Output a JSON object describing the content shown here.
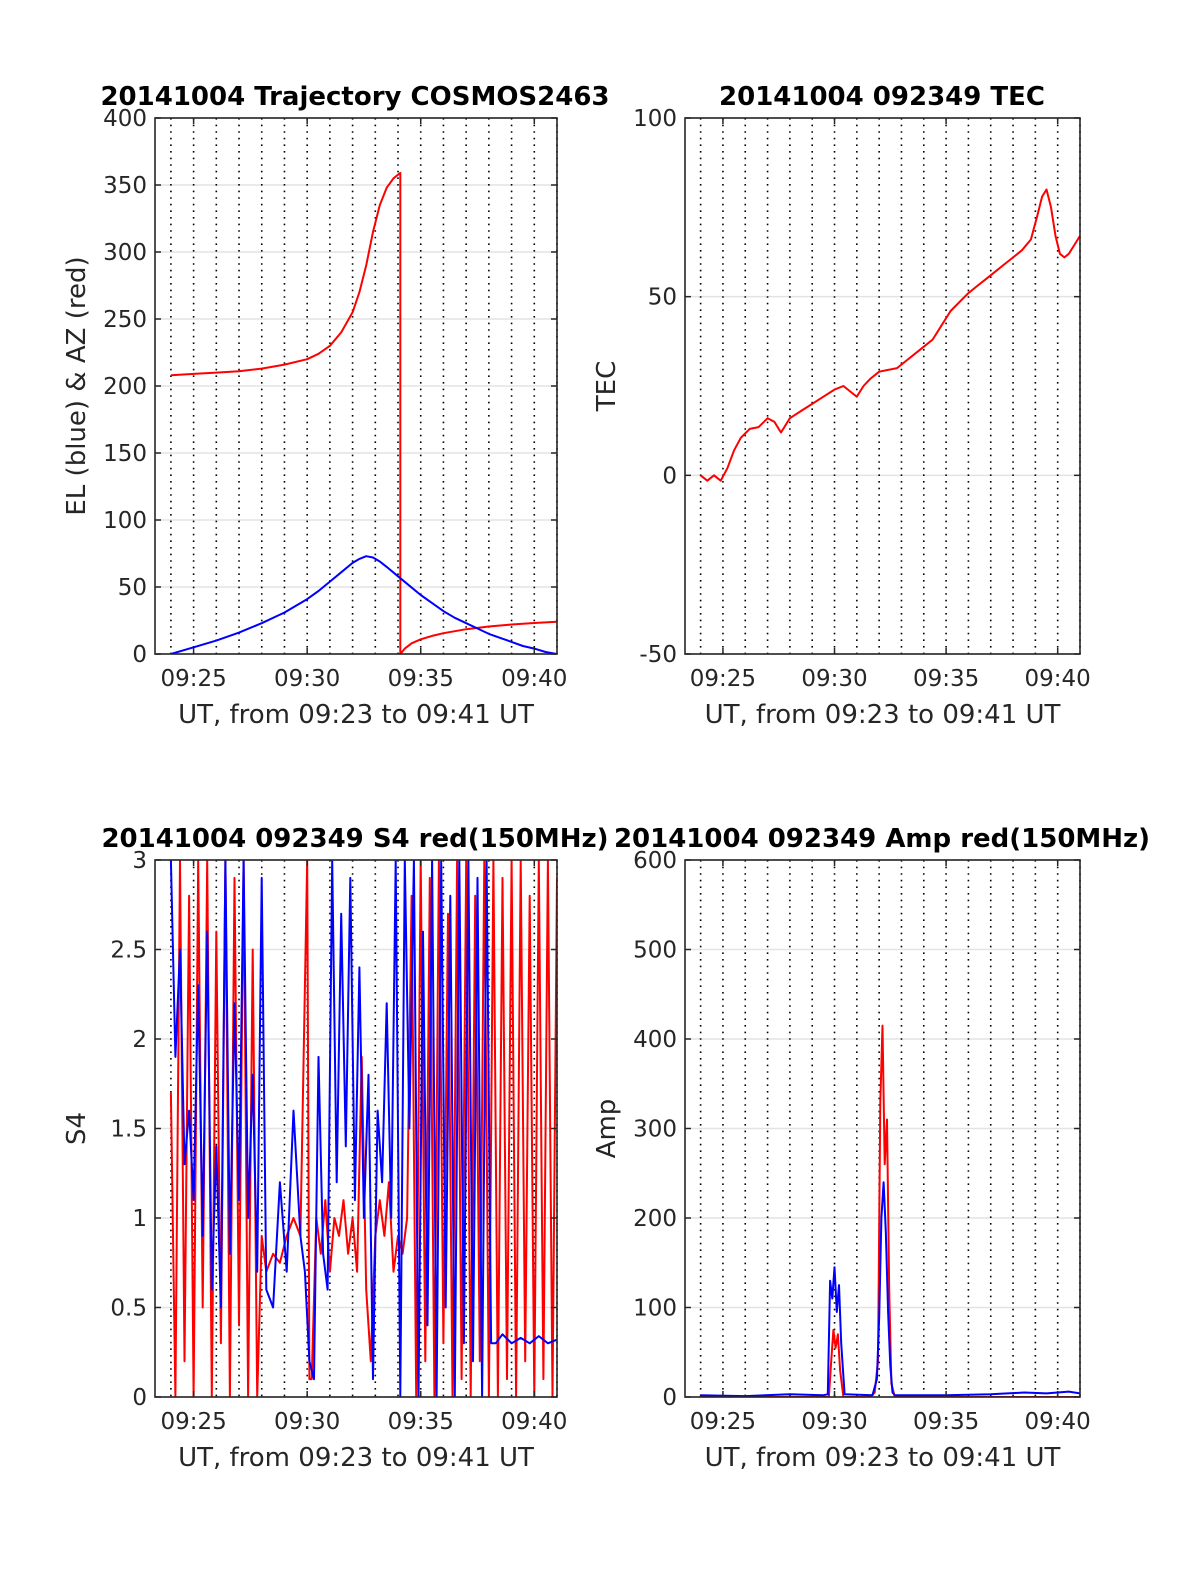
{
  "chart_data": [
    {
      "type": "line",
      "title": "20141004 Trajectory COSMOS2463",
      "xlabel": "UT, from 09:23 to 09:41 UT",
      "ylabel": "EL (blue) & AZ (red)",
      "xlim": [
        23.3,
        41.0
      ],
      "ylim": [
        0,
        400
      ],
      "x_ticks": [
        25,
        30,
        35,
        40
      ],
      "x_ticklabels": [
        "09:25",
        "09:30",
        "09:35",
        "09:40"
      ],
      "y_ticks": [
        0,
        50,
        100,
        150,
        200,
        250,
        300,
        350,
        400
      ],
      "y_ticklabels": [
        "0",
        "50",
        "100",
        "150",
        "200",
        "250",
        "300",
        "350",
        "400"
      ],
      "grid": true,
      "minor_vertical_dotted_grid": true,
      "series": [
        {
          "color": "#ff0000",
          "x": [
            24.0,
            25.0,
            26.0,
            27.0,
            28.0,
            29.0,
            30.0,
            30.5,
            31.0,
            31.5,
            32.0,
            32.3,
            32.6,
            32.9,
            33.2,
            33.5,
            33.8,
            34.1,
            34.1,
            34.3,
            34.6,
            35.0,
            35.5,
            36.0,
            36.5,
            37.0,
            37.5,
            38.0,
            38.5,
            39.0,
            39.5,
            40.0,
            40.5,
            41.0
          ],
          "y": [
            208,
            209,
            210,
            211,
            213,
            216,
            220,
            224,
            230,
            240,
            255,
            270,
            290,
            315,
            335,
            348,
            355,
            359,
            0,
            4,
            8,
            11,
            13.5,
            15.5,
            17,
            18.5,
            19.5,
            20.5,
            21.3,
            22,
            22.6,
            23.1,
            23.6,
            24
          ]
        },
        {
          "color": "#0000ff",
          "x": [
            24.0,
            25.0,
            26.0,
            27.0,
            28.0,
            29.0,
            30.0,
            30.5,
            31.0,
            31.5,
            32.0,
            32.3,
            32.6,
            32.9,
            33.2,
            33.5,
            34.0,
            34.5,
            35.0,
            35.5,
            36.0,
            36.5,
            37.0,
            37.5,
            38.0,
            38.5,
            39.0,
            39.5,
            40.0,
            40.5,
            41.0
          ],
          "y": [
            0,
            5,
            10,
            16,
            23,
            31,
            41,
            47,
            54,
            61,
            68,
            71,
            73,
            72,
            69,
            65,
            58,
            51,
            44,
            38,
            32,
            27,
            23,
            19,
            15,
            12,
            9,
            6,
            4,
            1.5,
            0
          ]
        }
      ]
    },
    {
      "type": "line",
      "title": "20141004 092349 TEC",
      "xlabel": "UT, from 09:23 to 09:41 UT",
      "ylabel": "TEC",
      "xlim": [
        23.3,
        41.0
      ],
      "ylim": [
        -50,
        100
      ],
      "x_ticks": [
        25,
        30,
        35,
        40
      ],
      "x_ticklabels": [
        "09:25",
        "09:30",
        "09:35",
        "09:40"
      ],
      "y_ticks": [
        -50,
        0,
        50,
        100
      ],
      "y_ticklabels": [
        "-50",
        "0",
        "50",
        "100"
      ],
      "grid": true,
      "minor_vertical_dotted_grid": true,
      "series": [
        {
          "color": "#ff0000",
          "x": [
            24.0,
            24.3,
            24.6,
            24.9,
            25.2,
            25.5,
            25.8,
            26.2,
            26.6,
            27.0,
            27.3,
            27.6,
            28.0,
            28.5,
            29.0,
            29.5,
            30.0,
            30.4,
            30.7,
            31.0,
            31.3,
            31.6,
            32.0,
            32.4,
            32.8,
            33.2,
            33.6,
            34.0,
            34.4,
            34.8,
            35.2,
            35.6,
            36.0,
            36.4,
            36.8,
            37.2,
            37.6,
            38.0,
            38.4,
            38.8,
            39.1,
            39.3,
            39.5,
            39.7,
            39.9,
            40.1,
            40.3,
            40.5,
            40.7,
            41.0
          ],
          "y": [
            0,
            -1.5,
            0,
            -1.5,
            2,
            7,
            10.5,
            13,
            13.5,
            16,
            15,
            12,
            16,
            18,
            20,
            22,
            24,
            25,
            23.5,
            22,
            25,
            27,
            29,
            29.5,
            30,
            32,
            34,
            36,
            38,
            42,
            46,
            48.5,
            51,
            53,
            55,
            57,
            59,
            61,
            63,
            66,
            73,
            78,
            80,
            75,
            67,
            62,
            61,
            62,
            64,
            67
          ]
        }
      ]
    },
    {
      "type": "line",
      "title": "20141004 092349 S4 red(150MHz)",
      "xlabel": "UT, from 09:23 to 09:41 UT",
      "ylabel": "S4",
      "xlim": [
        23.3,
        41.0
      ],
      "ylim": [
        0,
        3
      ],
      "x_ticks": [
        25,
        30,
        35,
        40
      ],
      "x_ticklabels": [
        "09:25",
        "09:30",
        "09:35",
        "09:40"
      ],
      "y_ticks": [
        0,
        0.5,
        1,
        1.5,
        2,
        2.5,
        3
      ],
      "y_ticklabels": [
        "0",
        "0.5",
        "1",
        "1.5",
        "2",
        "2.5",
        "3"
      ],
      "grid": true,
      "minor_vertical_dotted_grid": true,
      "series": [
        {
          "color": "#ff0000",
          "x": [
            24.0,
            24.2,
            24.4,
            24.6,
            24.8,
            25.0,
            25.2,
            25.4,
            25.6,
            25.8,
            26.0,
            26.2,
            26.4,
            26.6,
            26.8,
            27.0,
            27.2,
            27.4,
            27.6,
            27.8,
            28.0,
            28.2,
            28.5,
            28.8,
            29.1,
            29.4,
            29.7,
            30.0,
            30.1,
            30.2,
            30.4,
            30.6,
            30.8,
            31.0,
            31.2,
            31.4,
            31.6,
            31.8,
            32.0,
            32.2,
            32.4,
            32.6,
            32.8,
            33.0,
            33.2,
            33.4,
            33.6,
            33.8,
            34.0,
            34.2,
            34.4,
            34.6,
            34.8,
            35.0,
            35.2,
            35.4,
            35.6,
            35.8,
            36.0,
            36.2,
            36.4,
            36.6,
            36.8,
            37.0,
            37.2,
            37.4,
            37.6,
            37.8,
            38.0,
            38.2,
            38.4,
            38.6,
            38.8,
            39.0,
            39.2,
            39.4,
            39.6,
            39.8,
            40.0,
            40.2,
            40.4,
            40.6,
            40.8,
            41.0
          ],
          "y": [
            1.7,
            0,
            3,
            0.2,
            2.8,
            0,
            3,
            0.5,
            3,
            0,
            2.6,
            0.3,
            3,
            0,
            2.9,
            0.4,
            3,
            0,
            2.5,
            0,
            0.9,
            0.7,
            0.8,
            0.75,
            0.9,
            1.0,
            0.9,
            3,
            0.1,
            0.1,
            1.0,
            0.8,
            1.1,
            0.7,
            1.0,
            0.9,
            1.1,
            0.8,
            1.0,
            0.7,
            1.9,
            0.6,
            0.2,
            0.9,
            1.1,
            0.9,
            1.2,
            0.7,
            0.9,
            0.8,
            1.0,
            2.8,
            0,
            3,
            0.2,
            2.9,
            0,
            3,
            0.3,
            2.7,
            0,
            3,
            0.1,
            3,
            0,
            2.8,
            0.2,
            3,
            0,
            3,
            0,
            2.9,
            0.1,
            3,
            0,
            3,
            0.2,
            2.8,
            0,
            3,
            0.1,
            3,
            0,
            2.9
          ]
        },
        {
          "color": "#0000ff",
          "x": [
            24.0,
            24.2,
            24.4,
            24.6,
            24.8,
            25.0,
            25.2,
            25.4,
            25.6,
            25.8,
            26.0,
            26.2,
            26.4,
            26.6,
            26.8,
            27.0,
            27.2,
            27.4,
            27.6,
            27.8,
            28.0,
            28.2,
            28.5,
            28.8,
            29.1,
            29.4,
            29.7,
            29.9,
            30.1,
            30.3,
            30.5,
            30.7,
            30.9,
            31.1,
            31.3,
            31.5,
            31.7,
            31.9,
            32.1,
            32.3,
            32.5,
            32.7,
            32.9,
            33.1,
            33.3,
            33.5,
            33.7,
            33.9,
            34.1,
            34.3,
            34.5,
            34.7,
            34.9,
            35.1,
            35.3,
            35.5,
            35.7,
            35.9,
            36.1,
            36.3,
            36.5,
            36.7,
            36.9,
            37.1,
            37.3,
            37.5,
            37.7,
            37.9,
            38.1,
            38.3,
            38.6,
            39.0,
            39.4,
            39.8,
            40.2,
            40.6,
            41.0
          ],
          "y": [
            3,
            1.9,
            2.5,
            1.3,
            1.6,
            1.1,
            2.3,
            0.9,
            2.6,
            0.6,
            1.4,
            0.5,
            3,
            0.8,
            2.2,
            1.1,
            3,
            1.0,
            1.8,
            0.7,
            2.9,
            0.6,
            0.5,
            1.2,
            0.7,
            1.6,
            0.9,
            0.7,
            0.2,
            0.1,
            1.9,
            0.8,
            0.6,
            3,
            1.2,
            2.7,
            1.4,
            2.9,
            1.1,
            2.4,
            1.0,
            1.8,
            0.1,
            1.6,
            1.2,
            2.2,
            1.0,
            3,
            0,
            3,
            1.5,
            3,
            0,
            2.6,
            0.4,
            3,
            0,
            3,
            0.5,
            2.8,
            0,
            3,
            0.3,
            3,
            0.2,
            2.9,
            0,
            3,
            0.3,
            0.3,
            0.35,
            0.3,
            0.33,
            0.3,
            0.34,
            0.3,
            0.32
          ]
        }
      ]
    },
    {
      "type": "line",
      "title": "20141004 092349 Amp red(150MHz)",
      "xlabel": "UT, from 09:23 to 09:41 UT",
      "ylabel": "Amp",
      "xlim": [
        23.3,
        41.0
      ],
      "ylim": [
        0,
        600
      ],
      "x_ticks": [
        25,
        30,
        35,
        40
      ],
      "x_ticklabels": [
        "09:25",
        "09:30",
        "09:35",
        "09:40"
      ],
      "y_ticks": [
        0,
        100,
        200,
        300,
        400,
        500,
        600
      ],
      "y_ticklabels": [
        "0",
        "100",
        "200",
        "300",
        "400",
        "500",
        "600"
      ],
      "grid": true,
      "minor_vertical_dotted_grid": true,
      "series": [
        {
          "color": "#ff0000",
          "x": [
            24.0,
            29.6,
            29.75,
            29.85,
            29.95,
            30.05,
            30.15,
            30.25,
            30.4,
            31.6,
            31.8,
            31.95,
            32.05,
            32.15,
            32.25,
            32.35,
            32.45,
            32.55,
            32.7,
            41.0
          ],
          "y": [
            0,
            0,
            0,
            40,
            75,
            55,
            70,
            30,
            0,
            0,
            5,
            40,
            330,
            415,
            260,
            310,
            120,
            15,
            0,
            0
          ]
        },
        {
          "color": "#0000ff",
          "x": [
            24.0,
            26.0,
            28.0,
            29.5,
            29.7,
            29.8,
            29.9,
            30.0,
            30.1,
            30.2,
            30.3,
            30.45,
            31.7,
            31.9,
            32.0,
            32.1,
            32.2,
            32.3,
            32.4,
            32.5,
            32.6,
            32.7,
            35.0,
            37.0,
            38.5,
            39.5,
            40.5,
            41.0
          ],
          "y": [
            2,
            1,
            3,
            2,
            3,
            130,
            110,
            145,
            95,
            125,
            60,
            3,
            2,
            20,
            90,
            200,
            240,
            185,
            95,
            35,
            5,
            2,
            2,
            3,
            5,
            4,
            6,
            4
          ]
        }
      ]
    }
  ]
}
